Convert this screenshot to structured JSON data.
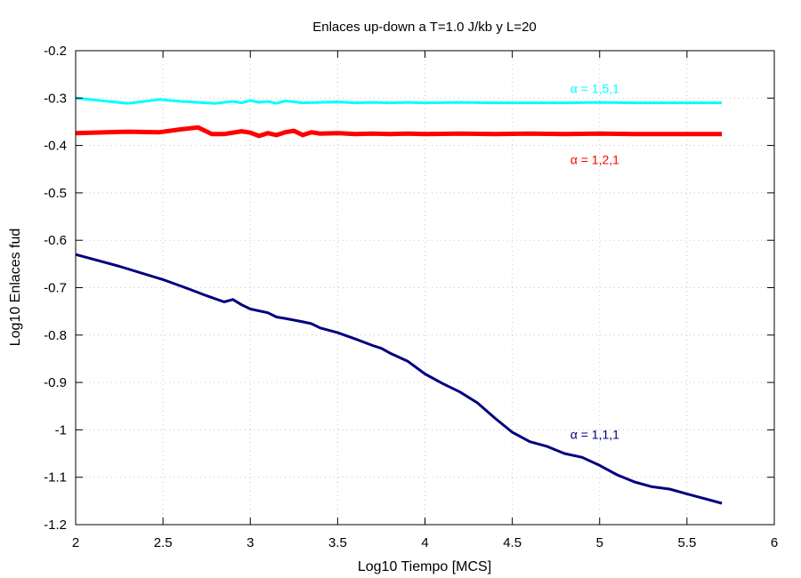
{
  "chart_data": {
    "type": "line",
    "title": "Enlaces up-down a T=1.0 J/kb y L=20",
    "xlabel": "Log10 Tiempo [MCS]",
    "ylabel": "Log10 Enlaces fud",
    "xlim": [
      2,
      6
    ],
    "ylim": [
      -1.2,
      -0.2
    ],
    "xticks": [
      "2",
      "2.5",
      "3",
      "3.5",
      "4",
      "4.5",
      "5",
      "5.5",
      "6"
    ],
    "yticks": [
      "-0.2",
      "-0.3",
      "-0.4",
      "-0.5",
      "-0.6",
      "-0.7",
      "-0.8",
      "-0.9",
      "-1",
      "-1.1",
      "-1.2"
    ],
    "grid": true,
    "series": [
      {
        "name": "α = 1,5,1",
        "color": "#00ffff",
        "x": [
          2.0,
          2.3,
          2.48,
          2.6,
          2.7,
          2.8,
          2.9,
          2.95,
          3.0,
          3.05,
          3.1,
          3.15,
          3.2,
          3.3,
          3.4,
          3.5,
          3.6,
          3.7,
          3.8,
          3.9,
          4.0,
          4.2,
          4.4,
          4.6,
          4.8,
          5.0,
          5.2,
          5.4,
          5.6,
          5.7
        ],
        "values": [
          -0.3,
          -0.311,
          -0.303,
          -0.307,
          -0.309,
          -0.311,
          -0.307,
          -0.31,
          -0.305,
          -0.309,
          -0.307,
          -0.311,
          -0.306,
          -0.31,
          -0.309,
          -0.308,
          -0.31,
          -0.309,
          -0.31,
          -0.309,
          -0.31,
          -0.309,
          -0.31,
          -0.31,
          -0.31,
          -0.309,
          -0.31,
          -0.31,
          -0.31,
          -0.31
        ],
        "label": "α = 1,5,1"
      },
      {
        "name": "α = 1,2,1",
        "color": "#ff0000",
        "x": [
          2.0,
          2.3,
          2.48,
          2.6,
          2.7,
          2.78,
          2.85,
          2.95,
          3.0,
          3.05,
          3.1,
          3.15,
          3.2,
          3.25,
          3.3,
          3.35,
          3.4,
          3.5,
          3.6,
          3.7,
          3.8,
          3.9,
          4.0,
          4.2,
          4.4,
          4.6,
          4.8,
          5.0,
          5.2,
          5.4,
          5.6,
          5.7
        ],
        "values": [
          -0.374,
          -0.371,
          -0.372,
          -0.366,
          -0.362,
          -0.376,
          -0.376,
          -0.37,
          -0.373,
          -0.38,
          -0.374,
          -0.378,
          -0.372,
          -0.369,
          -0.378,
          -0.372,
          -0.375,
          -0.374,
          -0.376,
          -0.375,
          -0.376,
          -0.375,
          -0.376,
          -0.375,
          -0.376,
          -0.375,
          -0.376,
          -0.375,
          -0.376,
          -0.376,
          -0.376,
          -0.376
        ],
        "label": "α = 1,2,1"
      },
      {
        "name": "α = 1,1,1",
        "color": "#00007f",
        "x": [
          2.0,
          2.25,
          2.5,
          2.65,
          2.75,
          2.85,
          2.9,
          2.95,
          3.0,
          3.1,
          3.15,
          3.2,
          3.3,
          3.35,
          3.4,
          3.5,
          3.6,
          3.7,
          3.75,
          3.8,
          3.9,
          4.0,
          4.1,
          4.2,
          4.3,
          4.4,
          4.5,
          4.6,
          4.7,
          4.8,
          4.9,
          5.0,
          5.1,
          5.2,
          5.3,
          5.4,
          5.5,
          5.6,
          5.7
        ],
        "values": [
          -0.63,
          -0.655,
          -0.683,
          -0.703,
          -0.717,
          -0.73,
          -0.725,
          -0.736,
          -0.745,
          -0.753,
          -0.762,
          -0.765,
          -0.772,
          -0.776,
          -0.785,
          -0.795,
          -0.808,
          -0.822,
          -0.828,
          -0.838,
          -0.855,
          -0.882,
          -0.902,
          -0.92,
          -0.943,
          -0.975,
          -1.005,
          -1.025,
          -1.035,
          -1.05,
          -1.058,
          -1.075,
          -1.095,
          -1.11,
          -1.12,
          -1.125,
          -1.135,
          -1.145,
          -1.155
        ],
        "label": "α = 1,1,1"
      }
    ]
  }
}
